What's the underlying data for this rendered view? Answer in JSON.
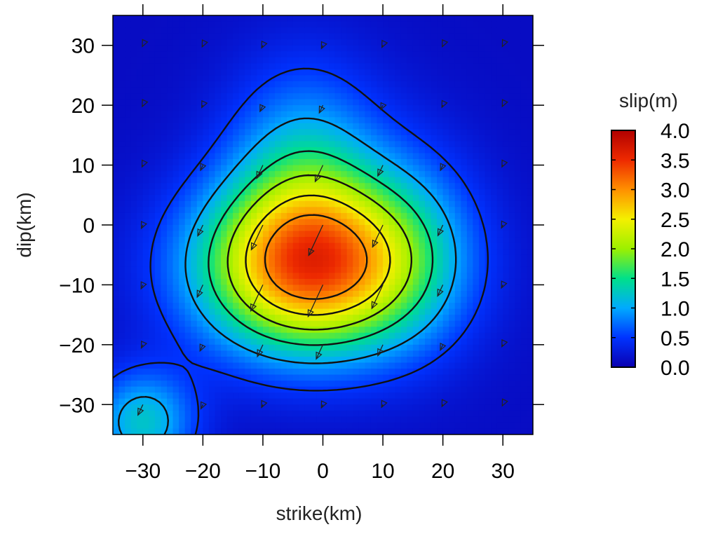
{
  "chart_data": {
    "type": "heatmap",
    "title": "",
    "xlabel": "strike(km)",
    "ylabel": "dip(km)",
    "xlim": [
      -35,
      35
    ],
    "ylim": [
      -35,
      35
    ],
    "x_ticks": [
      "−30",
      "−20",
      "−10",
      "0",
      "10",
      "20",
      "30"
    ],
    "y_ticks": [
      "30",
      "20",
      "10",
      "0",
      "−10",
      "−20",
      "−30"
    ],
    "x_tick_values": [
      -30,
      -20,
      -10,
      0,
      10,
      20,
      30
    ],
    "y_tick_values": [
      30,
      20,
      10,
      0,
      -10,
      -20,
      -30
    ],
    "colorbar": {
      "title": "slip(m)",
      "range": [
        0,
        4
      ],
      "ticks": [
        "4.0",
        "3.5",
        "3.0",
        "2.5",
        "2.0",
        "1.5",
        "1.0",
        "0.5",
        "0.0"
      ],
      "tick_values": [
        4.0,
        3.5,
        3.0,
        2.5,
        2.0,
        1.5,
        1.0,
        0.5,
        0.0
      ],
      "colors": [
        "#0a00b0",
        "#0033ff",
        "#00aaff",
        "#00e08a",
        "#9cf000",
        "#f4f000",
        "#ff9000",
        "#ee2a00",
        "#b00000"
      ]
    },
    "contour_levels": [
      0.5,
      1.0,
      1.5,
      2.0,
      2.5,
      3.0
    ],
    "peak_slip": 3.6,
    "peak_location": [
      -2,
      -7
    ],
    "arrow_grid": {
      "x": [
        -30,
        -20,
        -10,
        0,
        10,
        20,
        30
      ],
      "y": [
        30,
        20,
        10,
        0,
        -10,
        -20,
        -30
      ],
      "rake_direction": "down-left"
    }
  }
}
